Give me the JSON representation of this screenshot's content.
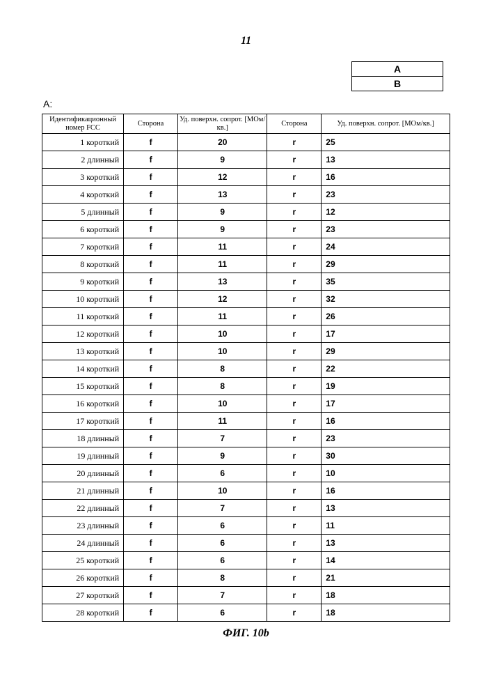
{
  "page_number": "11",
  "legend": {
    "a": "A",
    "b": "B"
  },
  "section_label": "A:",
  "table": {
    "headers": {
      "id": "Идентификационный номер FCC",
      "side": "Сторона",
      "resist": "Уд. поверхн. сопрот. [МОм/кв.]"
    },
    "rows": [
      {
        "id": "1 короткий",
        "s1": "f",
        "v1": "20",
        "s2": "r",
        "v2": "25"
      },
      {
        "id": "2 длинный",
        "s1": "f",
        "v1": "9",
        "s2": "r",
        "v2": "13"
      },
      {
        "id": "3 короткий",
        "s1": "f",
        "v1": "12",
        "s2": "r",
        "v2": "16"
      },
      {
        "id": "4 короткий",
        "s1": "f",
        "v1": "13",
        "s2": "r",
        "v2": "23"
      },
      {
        "id": "5 длинный",
        "s1": "f",
        "v1": "9",
        "s2": "r",
        "v2": "12"
      },
      {
        "id": "6 короткий",
        "s1": "f",
        "v1": "9",
        "s2": "r",
        "v2": "23"
      },
      {
        "id": "7 короткий",
        "s1": "f",
        "v1": "11",
        "s2": "r",
        "v2": "24"
      },
      {
        "id": "8 короткий",
        "s1": "f",
        "v1": "11",
        "s2": "r",
        "v2": "29"
      },
      {
        "id": "9 короткий",
        "s1": "f",
        "v1": "13",
        "s2": "r",
        "v2": "35"
      },
      {
        "id": "10 короткий",
        "s1": "f",
        "v1": "12",
        "s2": "r",
        "v2": "32"
      },
      {
        "id": "11 короткий",
        "s1": "f",
        "v1": "11",
        "s2": "r",
        "v2": "26"
      },
      {
        "id": "12 короткий",
        "s1": "f",
        "v1": "10",
        "s2": "r",
        "v2": "17"
      },
      {
        "id": "13 короткий",
        "s1": "f",
        "v1": "10",
        "s2": "r",
        "v2": "29"
      },
      {
        "id": "14 короткий",
        "s1": "f",
        "v1": "8",
        "s2": "r",
        "v2": "22"
      },
      {
        "id": "15 короткий",
        "s1": "f",
        "v1": "8",
        "s2": "r",
        "v2": "19"
      },
      {
        "id": "16 короткий",
        "s1": "f",
        "v1": "10",
        "s2": "r",
        "v2": "17"
      },
      {
        "id": "17 короткий",
        "s1": "f",
        "v1": "11",
        "s2": "r",
        "v2": "16"
      },
      {
        "id": "18 длинный",
        "s1": "f",
        "v1": "7",
        "s2": "r",
        "v2": "23"
      },
      {
        "id": "19 длинный",
        "s1": "f",
        "v1": "9",
        "s2": "r",
        "v2": "30"
      },
      {
        "id": "20 длинный",
        "s1": "f",
        "v1": "6",
        "s2": "r",
        "v2": "10"
      },
      {
        "id": "21 длинный",
        "s1": "f",
        "v1": "10",
        "s2": "r",
        "v2": "16"
      },
      {
        "id": "22 длинный",
        "s1": "f",
        "v1": "7",
        "s2": "r",
        "v2": "13"
      },
      {
        "id": "23 длинный",
        "s1": "f",
        "v1": "6",
        "s2": "r",
        "v2": "11"
      },
      {
        "id": "24 длинный",
        "s1": "f",
        "v1": "6",
        "s2": "r",
        "v2": "13"
      },
      {
        "id": "25 короткий",
        "s1": "f",
        "v1": "6",
        "s2": "r",
        "v2": "14"
      },
      {
        "id": "26 короткий",
        "s1": "f",
        "v1": "8",
        "s2": "r",
        "v2": "21"
      },
      {
        "id": "27 короткий",
        "s1": "f",
        "v1": "7",
        "s2": "r",
        "v2": "18"
      },
      {
        "id": "28 короткий",
        "s1": "f",
        "v1": "6",
        "s2": "r",
        "v2": "18"
      }
    ]
  },
  "figure_caption": "ФИГ. 10b"
}
